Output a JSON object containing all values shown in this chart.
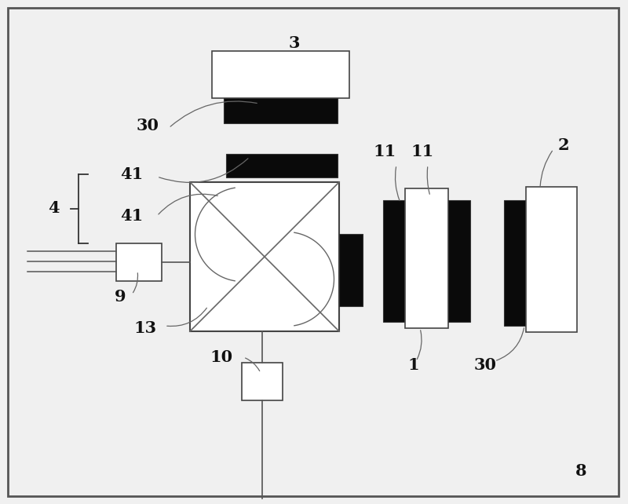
{
  "bg_color": "#f0f0f0",
  "border_color": "#555555",
  "line_color": "#666666",
  "black_fill": "#0a0a0a",
  "white_fill": "#ffffff",
  "label_color": "#111111",
  "fig_width": 8.0,
  "fig_height": 6.42
}
